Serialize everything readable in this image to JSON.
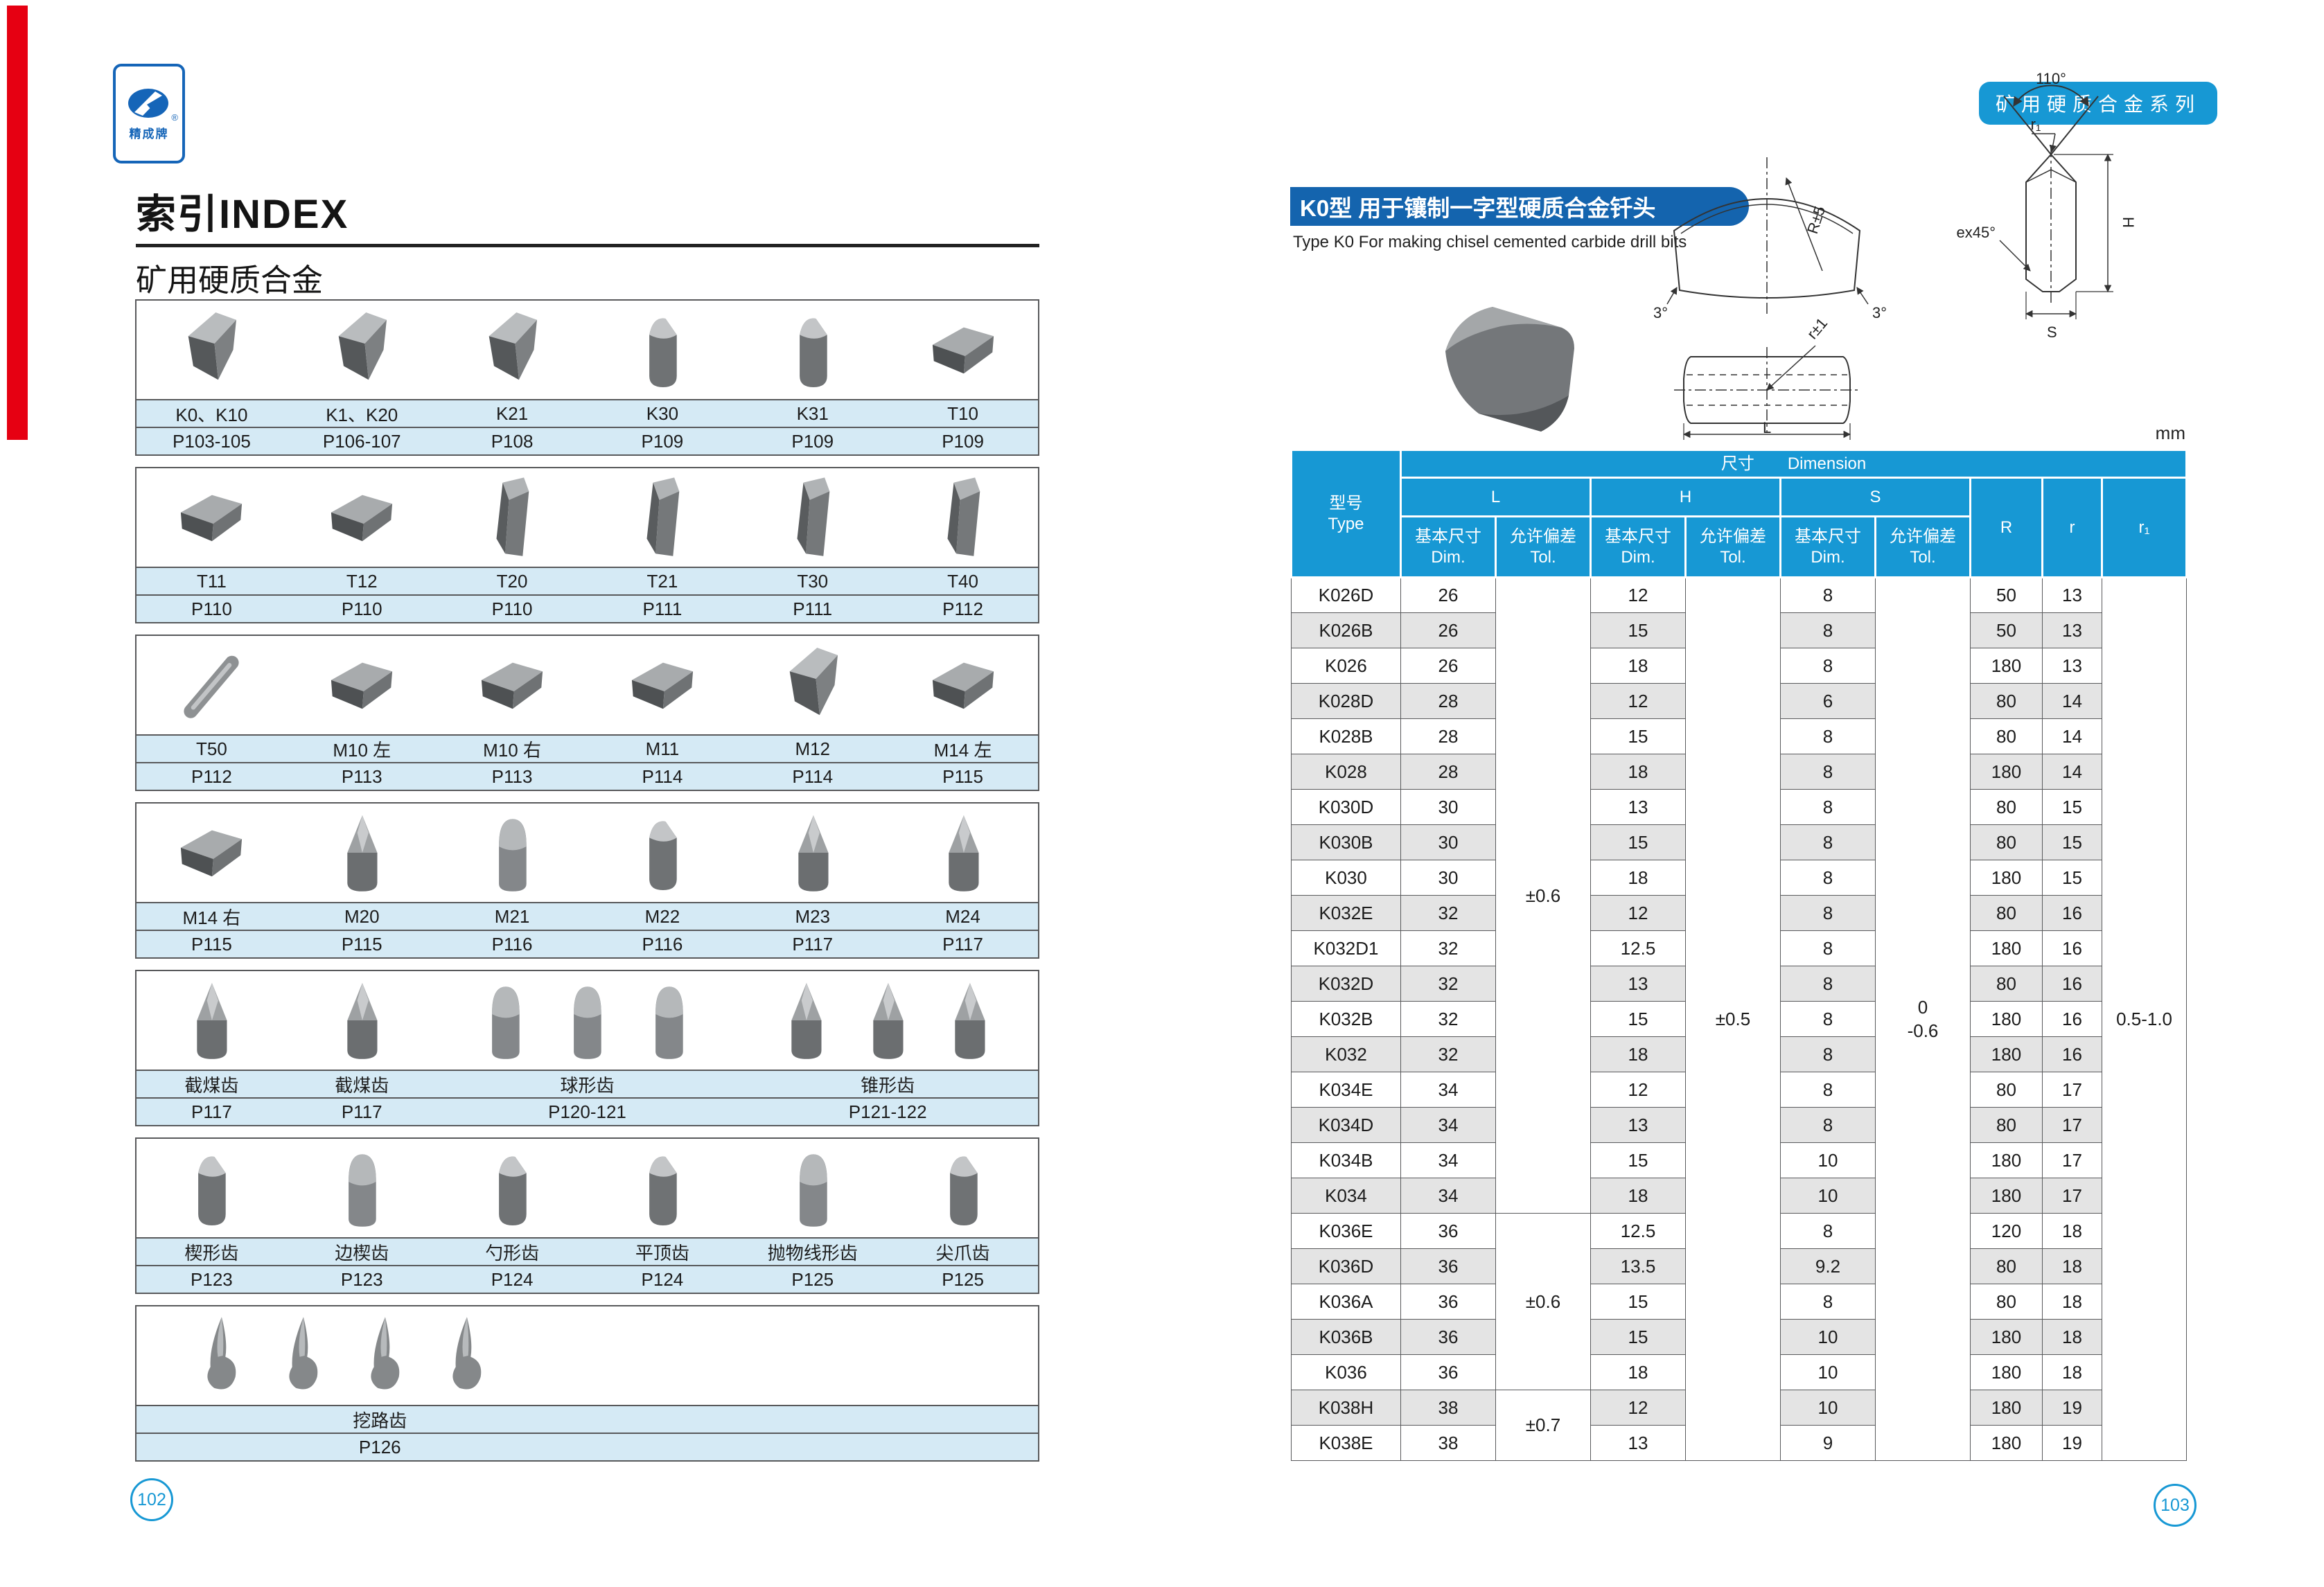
{
  "colors": {
    "blue": "#1798d4",
    "banner": "#1464ae",
    "red": "#e60012",
    "band": "#d5eaf5",
    "rowalt": "#e4e4e4",
    "logo": "#1565b8"
  },
  "page": {
    "left_footer": "102",
    "right_footer": "103"
  },
  "left_page": {
    "brand": {
      "logo_text": "精成牌",
      "registered": "®",
      "logo_icon": "brand-emblem"
    },
    "title": "索引INDEX",
    "subtitle": "矿用硬质合金",
    "groups": [
      {
        "items": [
          {
            "label": "K0、K10",
            "page": "P103-105",
            "shape": "chisel"
          },
          {
            "label": "K1、K20",
            "page": "P106-107",
            "shape": "chisel"
          },
          {
            "label": "K21",
            "page": "P108",
            "shape": "chisel"
          },
          {
            "label": "K30",
            "page": "P109",
            "shape": "cyl"
          },
          {
            "label": "K31",
            "page": "P109",
            "shape": "cyl"
          },
          {
            "label": "T10",
            "page": "P109",
            "shape": "slab"
          }
        ]
      },
      {
        "items": [
          {
            "label": "T11",
            "page": "P110",
            "shape": "slab"
          },
          {
            "label": "T12",
            "page": "P110",
            "shape": "slab"
          },
          {
            "label": "T20",
            "page": "P110",
            "shape": "prism"
          },
          {
            "label": "T21",
            "page": "P111",
            "shape": "prism"
          },
          {
            "label": "T30",
            "page": "P111",
            "shape": "prism"
          },
          {
            "label": "T40",
            "page": "P112",
            "shape": "prism"
          }
        ]
      },
      {
        "items": [
          {
            "label": "T50",
            "page": "P112",
            "shape": "rod"
          },
          {
            "label": "M10 左",
            "page": "P113",
            "shape": "slab"
          },
          {
            "label": "M10 右",
            "page": "P113",
            "shape": "slab"
          },
          {
            "label": "M11",
            "page": "P114",
            "shape": "slab"
          },
          {
            "label": "M12",
            "page": "P114",
            "shape": "chisel"
          },
          {
            "label": "M14 左",
            "page": "P115",
            "shape": "slab"
          }
        ]
      },
      {
        "items": [
          {
            "label": "M14 右",
            "page": "P115",
            "shape": "slab"
          },
          {
            "label": "M20",
            "page": "P115",
            "shape": "cone"
          },
          {
            "label": "M21",
            "page": "P116",
            "shape": "bullet"
          },
          {
            "label": "M22",
            "page": "P116",
            "shape": "cyl"
          },
          {
            "label": "M23",
            "page": "P117",
            "shape": "cone"
          },
          {
            "label": "M24",
            "page": "P117",
            "shape": "cone"
          }
        ]
      },
      {
        "items": [
          {
            "label": "截煤齿",
            "page": "P117",
            "shape": "cone",
            "flex": 1
          },
          {
            "label": "截煤齿",
            "page": "P117",
            "shape": "cone",
            "flex": 1
          },
          {
            "label": "球形齿",
            "page": "P120-121",
            "shape": "bullet",
            "count": 3,
            "flex": 2
          },
          {
            "label": "锥形齿",
            "page": "P121-122",
            "shape": "cone",
            "count": 3,
            "flex": 2
          }
        ]
      },
      {
        "items": [
          {
            "label": "楔形齿",
            "page": "P123",
            "shape": "cyl"
          },
          {
            "label": "边楔齿",
            "page": "P123",
            "shape": "bullet"
          },
          {
            "label": "勺形齿",
            "page": "P124",
            "shape": "cyl"
          },
          {
            "label": "平顶齿",
            "page": "P124",
            "shape": "cyl"
          },
          {
            "label": "抛物线形齿",
            "page": "P125",
            "shape": "bullet"
          },
          {
            "label": "尖爪齿",
            "page": "P125",
            "shape": "cyl"
          }
        ]
      },
      {
        "items": [
          {
            "label": "挖路齿",
            "page": "P126",
            "shape": "pick",
            "count": 4,
            "flex": 1,
            "align": "left"
          }
        ]
      }
    ]
  },
  "right_page": {
    "series_badge": "矿用硬质合金系列",
    "section_title": "K0型 用于镶制一字型硬质合金钎头",
    "section_subtitle": "Type K0 For making chisel cemented carbide drill bits",
    "unit": "mm",
    "diagram": {
      "angle": "110°",
      "r1": "r₁",
      "ex45": "ex45°",
      "h": "H",
      "s": "S",
      "r5": "R±5",
      "deg3_left": "3°",
      "deg3_right": "3°",
      "r_pm1": "r±1",
      "l": "L"
    },
    "table": {
      "header": {
        "type_cn": "型号",
        "type_en": "Type",
        "dim_cn": "尺寸",
        "dim_en": "Dimension",
        "L": "L",
        "H": "H",
        "S": "S",
        "dim_label_cn": "基本尺寸",
        "dim_label_en": "Dim.",
        "tol_label_cn": "允许偏差",
        "tol_label_en": "Tol.",
        "R": "R",
        "r": "r",
        "r1": "r₁"
      },
      "rows": [
        [
          "K026D",
          "26",
          "12",
          "8",
          "50",
          "13"
        ],
        [
          "K026B",
          "26",
          "15",
          "8",
          "50",
          "13"
        ],
        [
          "K026",
          "26",
          "18",
          "8",
          "180",
          "13"
        ],
        [
          "K028D",
          "28",
          "12",
          "6",
          "80",
          "14"
        ],
        [
          "K028B",
          "28",
          "15",
          "8",
          "80",
          "14"
        ],
        [
          "K028",
          "28",
          "18",
          "8",
          "180",
          "14"
        ],
        [
          "K030D",
          "30",
          "13",
          "8",
          "80",
          "15"
        ],
        [
          "K030B",
          "30",
          "15",
          "8",
          "80",
          "15"
        ],
        [
          "K030",
          "30",
          "18",
          "8",
          "180",
          "15"
        ],
        [
          "K032E",
          "32",
          "12",
          "8",
          "80",
          "16"
        ],
        [
          "K032D1",
          "32",
          "12.5",
          "8",
          "180",
          "16"
        ],
        [
          "K032D",
          "32",
          "13",
          "8",
          "80",
          "16"
        ],
        [
          "K032B",
          "32",
          "15",
          "8",
          "180",
          "16"
        ],
        [
          "K032",
          "32",
          "18",
          "8",
          "180",
          "16"
        ],
        [
          "K034E",
          "34",
          "12",
          "8",
          "80",
          "17"
        ],
        [
          "K034D",
          "34",
          "13",
          "8",
          "80",
          "17"
        ],
        [
          "K034B",
          "34",
          "15",
          "10",
          "180",
          "17"
        ],
        [
          "K034",
          "34",
          "18",
          "10",
          "180",
          "17"
        ],
        [
          "K036E",
          "36",
          "12.5",
          "8",
          "120",
          "18"
        ],
        [
          "K036D",
          "36",
          "13.5",
          "9.2",
          "80",
          "18"
        ],
        [
          "K036A",
          "36",
          "15",
          "8",
          "80",
          "18"
        ],
        [
          "K036B",
          "36",
          "15",
          "10",
          "180",
          "18"
        ],
        [
          "K036",
          "36",
          "18",
          "10",
          "180",
          "18"
        ],
        [
          "K038H",
          "38",
          "12",
          "10",
          "180",
          "19"
        ],
        [
          "K038E",
          "38",
          "13",
          "9",
          "180",
          "19"
        ]
      ],
      "l_tol_groups": [
        {
          "span": 18,
          "value": "±0.6"
        },
        {
          "span": 5,
          "value": "±0.6"
        },
        {
          "span": 2,
          "value": "±0.7"
        }
      ],
      "h_tol": "±0.5",
      "s_tol": "0\n-0.6",
      "r1_value": "0.5-1.0"
    }
  }
}
